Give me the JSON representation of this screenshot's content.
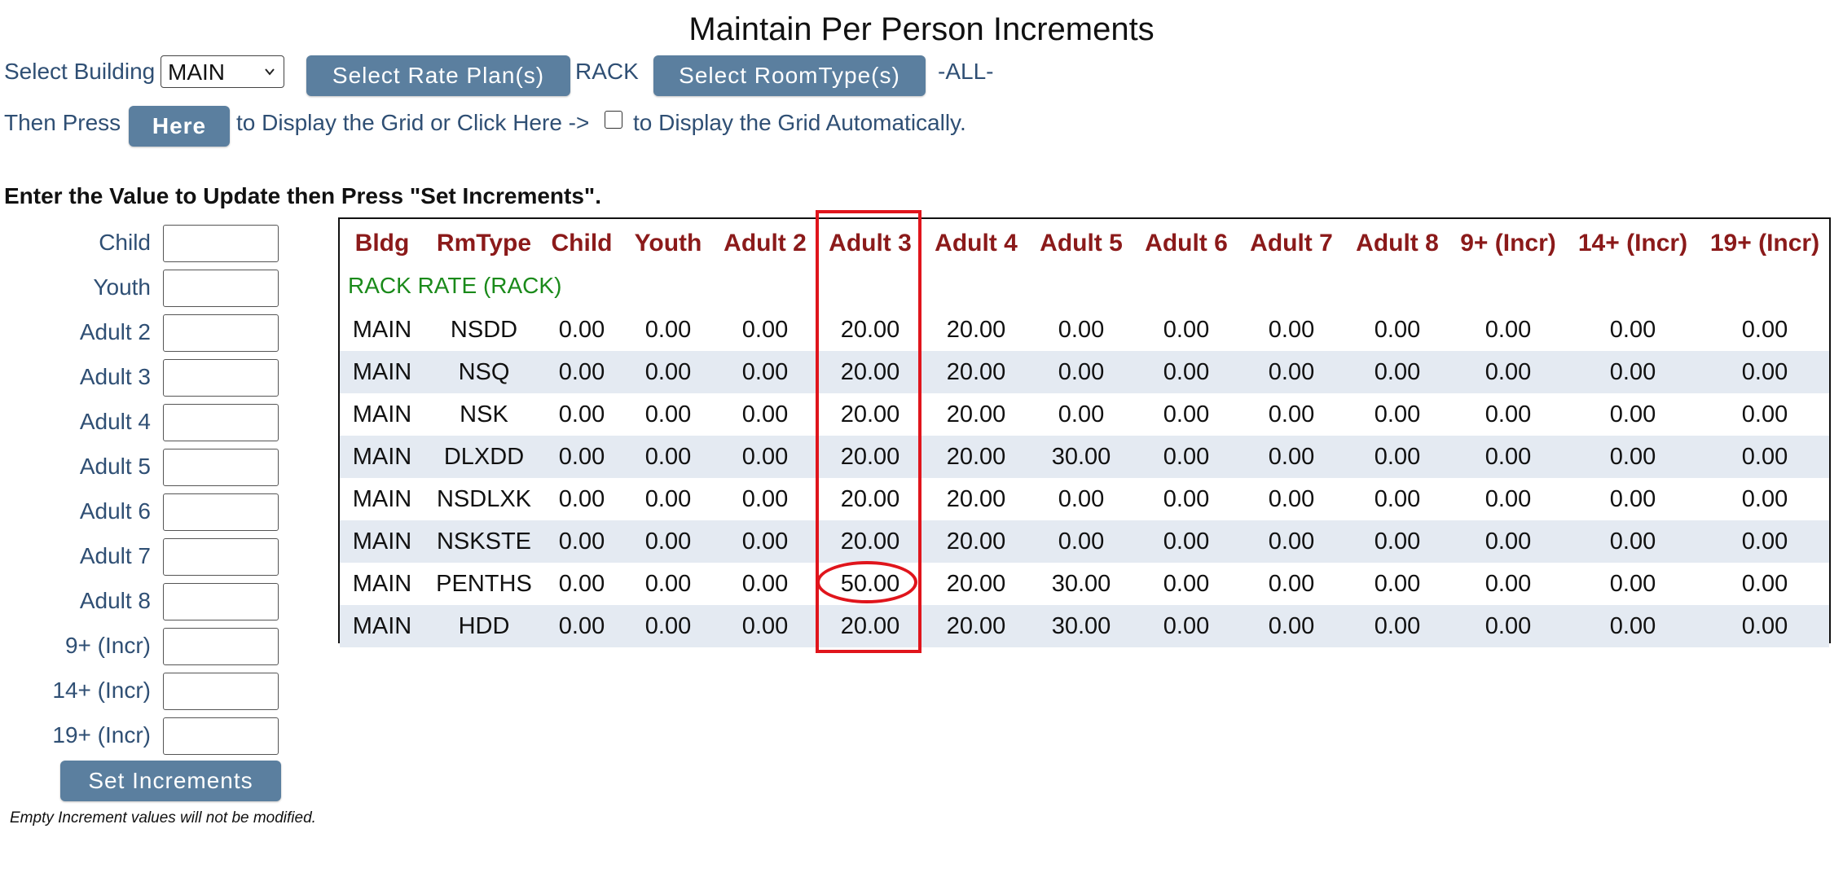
{
  "title": "Maintain Per Person Increments",
  "controls": {
    "select_building_label": "Select Building",
    "building_value": "MAIN",
    "rate_plan_button": "Select Rate Plan(s)",
    "rate_plan_value": "RACK",
    "roomtype_button": "Select RoomType(s)",
    "roomtype_value": "-ALL-",
    "then_press_label": "Then Press",
    "here_button": "Here",
    "display_text": "to Display the Grid or Click Here ->",
    "auto_display_text": "to Display the Grid Automatically."
  },
  "increments": {
    "header": "Enter the Value to Update then Press \"Set Increments\".",
    "fields": [
      {
        "label": "Child",
        "value": ""
      },
      {
        "label": "Youth",
        "value": ""
      },
      {
        "label": "Adult 2",
        "value": ""
      },
      {
        "label": "Adult 3",
        "value": ""
      },
      {
        "label": "Adult 4",
        "value": ""
      },
      {
        "label": "Adult 5",
        "value": ""
      },
      {
        "label": "Adult 6",
        "value": ""
      },
      {
        "label": "Adult 7",
        "value": ""
      },
      {
        "label": "Adult 8",
        "value": ""
      },
      {
        "label": "9+ (Incr)",
        "value": ""
      },
      {
        "label": "14+ (Incr)",
        "value": ""
      },
      {
        "label": "19+ (Incr)",
        "value": ""
      }
    ],
    "set_button": "Set Increments",
    "note": "Empty Increment values will not be modified."
  },
  "grid": {
    "columns": [
      "Bldg",
      "RmType",
      "Child",
      "Youth",
      "Adult 2",
      "Adult 3",
      "Adult 4",
      "Adult 5",
      "Adult 6",
      "Adult 7",
      "Adult 8",
      "9+ (Incr)",
      "14+ (Incr)",
      "19+ (Incr)"
    ],
    "rate_plan_label": "RACK RATE (RACK)",
    "rows": [
      [
        "MAIN",
        "NSDD",
        "0.00",
        "0.00",
        "0.00",
        "20.00",
        "20.00",
        "0.00",
        "0.00",
        "0.00",
        "0.00",
        "0.00",
        "0.00",
        "0.00"
      ],
      [
        "MAIN",
        "NSQ",
        "0.00",
        "0.00",
        "0.00",
        "20.00",
        "20.00",
        "0.00",
        "0.00",
        "0.00",
        "0.00",
        "0.00",
        "0.00",
        "0.00"
      ],
      [
        "MAIN",
        "NSK",
        "0.00",
        "0.00",
        "0.00",
        "20.00",
        "20.00",
        "0.00",
        "0.00",
        "0.00",
        "0.00",
        "0.00",
        "0.00",
        "0.00"
      ],
      [
        "MAIN",
        "DLXDD",
        "0.00",
        "0.00",
        "0.00",
        "20.00",
        "20.00",
        "30.00",
        "0.00",
        "0.00",
        "0.00",
        "0.00",
        "0.00",
        "0.00"
      ],
      [
        "MAIN",
        "NSDLXK",
        "0.00",
        "0.00",
        "0.00",
        "20.00",
        "20.00",
        "0.00",
        "0.00",
        "0.00",
        "0.00",
        "0.00",
        "0.00",
        "0.00"
      ],
      [
        "MAIN",
        "NSKSTE",
        "0.00",
        "0.00",
        "0.00",
        "20.00",
        "20.00",
        "0.00",
        "0.00",
        "0.00",
        "0.00",
        "0.00",
        "0.00",
        "0.00"
      ],
      [
        "MAIN",
        "PENTHS",
        "0.00",
        "0.00",
        "0.00",
        "50.00",
        "20.00",
        "30.00",
        "0.00",
        "0.00",
        "0.00",
        "0.00",
        "0.00",
        "0.00"
      ],
      [
        "MAIN",
        "HDD",
        "0.00",
        "0.00",
        "0.00",
        "20.00",
        "20.00",
        "30.00",
        "0.00",
        "0.00",
        "0.00",
        "0.00",
        "0.00",
        "0.00"
      ]
    ],
    "stripe_color": "#e4eaf2",
    "header_color": "#8b1a1a",
    "rate_plan_color": "#1a8a1a"
  },
  "annotation": {
    "highlight_color": "#e0151c",
    "highlighted_column": "Adult 3",
    "highlighted_cell": "50.00"
  }
}
